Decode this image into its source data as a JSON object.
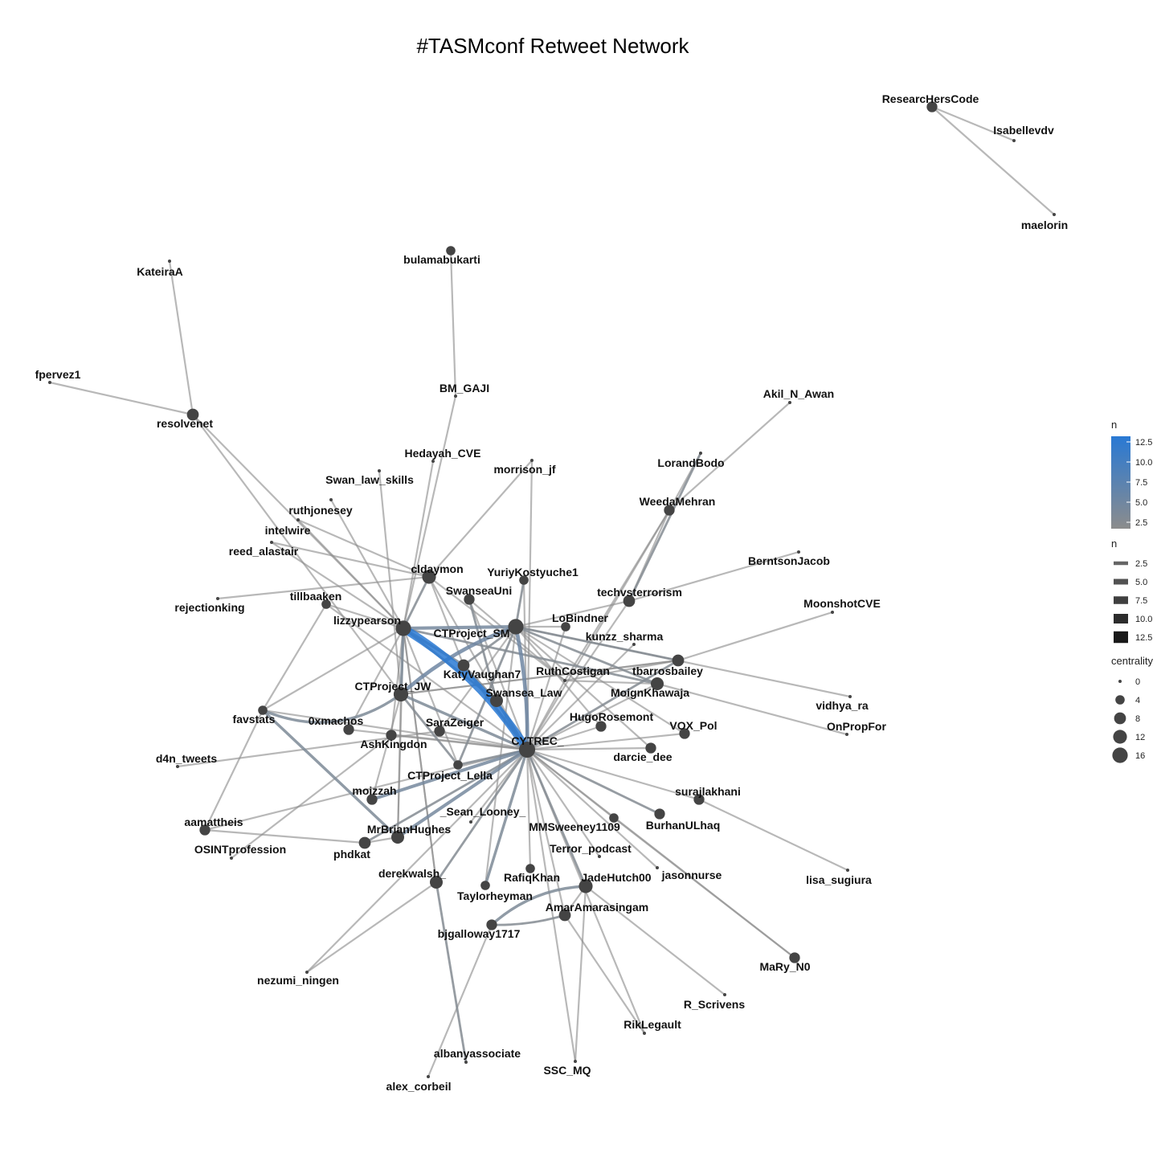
{
  "title": "#TASMconf Retweet Network",
  "colors": {
    "edge_low": "#8c8c8c",
    "edge_high": "#2979d4",
    "node": "#444444",
    "label": "#111111"
  },
  "nodes": [
    {
      "id": "ResearcHersCode",
      "centrality": 6
    },
    {
      "id": "Isabellevdv",
      "centrality": 0
    },
    {
      "id": "maelorin",
      "centrality": 0
    },
    {
      "id": "KateiraA",
      "centrality": 0
    },
    {
      "id": "fpervez1",
      "centrality": 0
    },
    {
      "id": "resolvenet",
      "centrality": 8
    },
    {
      "id": "bulamabukarti",
      "centrality": 4
    },
    {
      "id": "BM_GAJI",
      "centrality": 0
    },
    {
      "id": "Hedayah_CVE",
      "centrality": 0
    },
    {
      "id": "morrison_jf",
      "centrality": 0
    },
    {
      "id": "Swan_law_skills",
      "centrality": 0
    },
    {
      "id": "ruthjonesey",
      "centrality": 0
    },
    {
      "id": "intelwire",
      "centrality": 0
    },
    {
      "id": "reed_alastair",
      "centrality": 0
    },
    {
      "id": "rejectionking",
      "centrality": 0
    },
    {
      "id": "cldaymon",
      "centrality": 12
    },
    {
      "id": "YuriyKostyuche1",
      "centrality": 4
    },
    {
      "id": "SwanseaUni",
      "centrality": 6
    },
    {
      "id": "tillbaaken",
      "centrality": 4
    },
    {
      "id": "lizzypearson",
      "centrality": 16
    },
    {
      "id": "CTProject_SM",
      "centrality": 16
    },
    {
      "id": "LoBindner",
      "centrality": 4
    },
    {
      "id": "kunzz_sharma",
      "centrality": 0
    },
    {
      "id": "KatyVaughan7",
      "centrality": 8
    },
    {
      "id": "RuthCostigan",
      "centrality": 0
    },
    {
      "id": "tbarrosbailey",
      "centrality": 8
    },
    {
      "id": "CTProject_JW",
      "centrality": 14
    },
    {
      "id": "Swansea_Law",
      "centrality": 10
    },
    {
      "id": "MoignKhawaja",
      "centrality": 10
    },
    {
      "id": "favstats",
      "centrality": 4
    },
    {
      "id": "0xmachos",
      "centrality": 6
    },
    {
      "id": "SaraZeiger",
      "centrality": 6
    },
    {
      "id": "HugoRosemont",
      "centrality": 6
    },
    {
      "id": "VOX_Pol",
      "centrality": 6
    },
    {
      "id": "d4n_tweets",
      "centrality": 0
    },
    {
      "id": "AshKingdon",
      "centrality": 6
    },
    {
      "id": "CYTREC_",
      "centrality": 18
    },
    {
      "id": "darcie_dee",
      "centrality": 6
    },
    {
      "id": "CTProject_Lella",
      "centrality": 4
    },
    {
      "id": "surajlakhani",
      "centrality": 6
    },
    {
      "id": "moizzah",
      "centrality": 6
    },
    {
      "id": "aamattheis",
      "centrality": 6
    },
    {
      "id": "_Sean_Looney_",
      "centrality": 0
    },
    {
      "id": "BurhanULhaq",
      "centrality": 6
    },
    {
      "id": "MrBrianHughes",
      "centrality": 10
    },
    {
      "id": "MMSweeney1109",
      "centrality": 4
    },
    {
      "id": "OSINTprofession",
      "centrality": 0
    },
    {
      "id": "phdkat",
      "centrality": 8
    },
    {
      "id": "Terror_podcast",
      "centrality": 0
    },
    {
      "id": "jasonnurse",
      "centrality": 0
    },
    {
      "id": "lisa_sugiura",
      "centrality": 0
    },
    {
      "id": "derekwalsh_",
      "centrality": 10
    },
    {
      "id": "RafiqKhan",
      "centrality": 4
    },
    {
      "id": "JadeHutch00",
      "centrality": 12
    },
    {
      "id": "Taylorheyman",
      "centrality": 4
    },
    {
      "id": "AmarAmarasingam",
      "centrality": 8
    },
    {
      "id": "bjgalloway1717",
      "centrality": 6
    },
    {
      "id": "MaRy_N0",
      "centrality": 6
    },
    {
      "id": "nezumi_ningen",
      "centrality": 0
    },
    {
      "id": "R_Scrivens",
      "centrality": 0
    },
    {
      "id": "RikLegault",
      "centrality": 0
    },
    {
      "id": "albanyassociate",
      "centrality": 0
    },
    {
      "id": "SSC_MQ",
      "centrality": 0
    },
    {
      "id": "alex_corbeil",
      "centrality": 0
    },
    {
      "id": "techvsterrorism",
      "centrality": 8
    },
    {
      "id": "WeedaMehran",
      "centrality": 6
    },
    {
      "id": "LorandBodo",
      "centrality": 0
    },
    {
      "id": "Akil_N_Awan",
      "centrality": 0
    },
    {
      "id": "BerntsonJacob",
      "centrality": 0
    },
    {
      "id": "MoonshotCVE",
      "centrality": 0
    },
    {
      "id": "vidhya_ra",
      "centrality": 0
    },
    {
      "id": "OnPropFor",
      "centrality": 0
    }
  ],
  "edges": [
    {
      "from": "Isabellevdv",
      "to": "ResearcHersCode",
      "n": 1
    },
    {
      "from": "maelorin",
      "to": "ResearcHersCode",
      "n": 1
    },
    {
      "from": "KateiraA",
      "to": "resolvenet",
      "n": 1
    },
    {
      "from": "fpervez1",
      "to": "resolvenet",
      "n": 1
    },
    {
      "from": "resolvenet",
      "to": "lizzypearson",
      "n": 1
    },
    {
      "from": "resolvenet",
      "to": "CTProject_JW",
      "n": 1
    },
    {
      "from": "bulamabukarti",
      "to": "BM_GAJI",
      "n": 1
    },
    {
      "from": "BM_GAJI",
      "to": "lizzypearson",
      "n": 1
    },
    {
      "from": "Hedayah_CVE",
      "to": "lizzypearson",
      "n": 1
    },
    {
      "from": "morrison_jf",
      "to": "cldaymon",
      "n": 1
    },
    {
      "from": "morrison_jf",
      "to": "CYTREC_",
      "n": 1
    },
    {
      "from": "Swan_law_skills",
      "to": "CTProject_JW",
      "n": 1
    },
    {
      "from": "ruthjonesey",
      "to": "lizzypearson",
      "n": 1
    },
    {
      "from": "intelwire",
      "to": "lizzypearson",
      "n": 1
    },
    {
      "from": "intelwire",
      "to": "cldaymon",
      "n": 1
    },
    {
      "from": "reed_alastair",
      "to": "cldaymon",
      "n": 1
    },
    {
      "from": "reed_alastair",
      "to": "lizzypearson",
      "n": 1
    },
    {
      "from": "rejectionking",
      "to": "cldaymon",
      "n": 1
    },
    {
      "from": "tillbaaken",
      "to": "lizzypearson",
      "n": 1
    },
    {
      "from": "tillbaaken",
      "to": "CYTREC_",
      "n": 1
    },
    {
      "from": "tillbaaken",
      "to": "favstats",
      "n": 1
    },
    {
      "from": "lizzypearson",
      "to": "CYTREC_",
      "n": 14
    },
    {
      "from": "lizzypearson",
      "to": "CTProject_SM",
      "n": 4
    },
    {
      "from": "lizzypearson",
      "to": "KatyVaughan7",
      "n": 3
    },
    {
      "from": "lizzypearson",
      "to": "CTProject_JW",
      "n": 3
    },
    {
      "from": "lizzypearson",
      "to": "Swansea_Law",
      "n": 2
    },
    {
      "from": "lizzypearson",
      "to": "cldaymon",
      "n": 2
    },
    {
      "from": "lizzypearson",
      "to": "favstats",
      "n": 1
    },
    {
      "from": "lizzypearson",
      "to": "AshKingdon",
      "n": 1
    },
    {
      "from": "lizzypearson",
      "to": "MoignKhawaja",
      "n": 2
    },
    {
      "from": "CTProject_SM",
      "to": "CYTREC_",
      "n": 5
    },
    {
      "from": "CTProject_SM",
      "to": "CTProject_JW",
      "n": 5
    },
    {
      "from": "CTProject_SM",
      "to": "KatyVaughan7",
      "n": 2
    },
    {
      "from": "CTProject_SM",
      "to": "tbarrosbailey",
      "n": 2
    },
    {
      "from": "CTProject_SM",
      "to": "MoignKhawaja",
      "n": 2
    },
    {
      "from": "CTProject_SM",
      "to": "vidhya_ra",
      "n": 1
    },
    {
      "from": "CTProject_SM",
      "to": "CTProject_Lella",
      "n": 2
    },
    {
      "from": "cldaymon",
      "to": "CYTREC_",
      "n": 1
    },
    {
      "from": "cldaymon",
      "to": "RuthCostigan",
      "n": 1
    },
    {
      "from": "cldaymon",
      "to": "KatyVaughan7",
      "n": 1
    },
    {
      "from": "YuriyKostyuche1",
      "to": "CTProject_SM",
      "n": 2
    },
    {
      "from": "YuriyKostyuche1",
      "to": "CYTREC_",
      "n": 1
    },
    {
      "from": "SwanseaUni",
      "to": "Swansea_Law",
      "n": 2
    },
    {
      "from": "SwanseaUni",
      "to": "CYTREC_",
      "n": 1
    },
    {
      "from": "SwanseaUni",
      "to": "RuthCostigan",
      "n": 1
    },
    {
      "from": "LoBindner",
      "to": "CYTREC_",
      "n": 1
    },
    {
      "from": "LoBindner",
      "to": "CTProject_SM",
      "n": 1
    },
    {
      "from": "kunzz_sharma",
      "to": "CYTREC_",
      "n": 1
    },
    {
      "from": "KatyVaughan7",
      "to": "CYTREC_",
      "n": 3
    },
    {
      "from": "KatyVaughan7",
      "to": "Swansea_Law",
      "n": 2
    },
    {
      "from": "RuthCostigan",
      "to": "CYTREC_",
      "n": 1
    },
    {
      "from": "RuthCostigan",
      "to": "tbarrosbailey",
      "n": 1
    },
    {
      "from": "RuthCostigan",
      "to": "MoignKhawaja",
      "n": 1
    },
    {
      "from": "tbarrosbailey",
      "to": "CYTREC_",
      "n": 2
    },
    {
      "from": "tbarrosbailey",
      "to": "MoonshotCVE",
      "n": 1
    },
    {
      "from": "tbarrosbailey",
      "to": "CTProject_JW",
      "n": 1
    },
    {
      "from": "CTProject_JW",
      "to": "CYTREC_",
      "n": 3
    },
    {
      "from": "CTProject_JW",
      "to": "favstats",
      "n": 3
    },
    {
      "from": "CTProject_JW",
      "to": "CTProject_Lella",
      "n": 2
    },
    {
      "from": "CTProject_JW",
      "to": "tbarrosbailey",
      "n": 1
    },
    {
      "from": "Swansea_Law",
      "to": "CYTREC_",
      "n": 3
    },
    {
      "from": "MoignKhawaja",
      "to": "CYTREC_",
      "n": 1
    },
    {
      "from": "MoignKhawaja",
      "to": "OnPropFor",
      "n": 1
    },
    {
      "from": "favstats",
      "to": "CYTREC_",
      "n": 1
    },
    {
      "from": "favstats",
      "to": "MrBrianHughes",
      "n": 3
    },
    {
      "from": "favstats",
      "to": "aamattheis",
      "n": 1
    },
    {
      "from": "0xmachos",
      "to": "CYTREC_",
      "n": 1
    },
    {
      "from": "d4n_tweets",
      "to": "SaraZeiger",
      "n": 1
    },
    {
      "from": "SaraZeiger",
      "to": "CYTREC_",
      "n": 1
    },
    {
      "from": "SaraZeiger",
      "to": "CTProject_SM",
      "n": 1
    },
    {
      "from": "HugoRosemont",
      "to": "CYTREC_",
      "n": 1
    },
    {
      "from": "VOX_Pol",
      "to": "CYTREC_",
      "n": 1
    },
    {
      "from": "VOX_Pol",
      "to": "CTProject_SM",
      "n": 1
    },
    {
      "from": "AshKingdon",
      "to": "CYTREC_",
      "n": 1
    },
    {
      "from": "AshKingdon",
      "to": "OSINTprofession",
      "n": 1
    },
    {
      "from": "CYTREC_",
      "to": "darcie_dee",
      "n": 1
    },
    {
      "from": "CYTREC_",
      "to": "CTProject_Lella",
      "n": 2
    },
    {
      "from": "CYTREC_",
      "to": "surajlakhani",
      "n": 1
    },
    {
      "from": "CYTREC_",
      "to": "moizzah",
      "n": 4
    },
    {
      "from": "CYTREC_",
      "to": "_Sean_Looney_",
      "n": 1
    },
    {
      "from": "CYTREC_",
      "to": "BurhanULhaq",
      "n": 2
    },
    {
      "from": "CYTREC_",
      "to": "MrBrianHughes",
      "n": 4
    },
    {
      "from": "CYTREC_",
      "to": "MMSweeney1109",
      "n": 1
    },
    {
      "from": "CYTREC_",
      "to": "phdkat",
      "n": 2
    },
    {
      "from": "CYTREC_",
      "to": "Terror_podcast",
      "n": 1
    },
    {
      "from": "CYTREC_",
      "to": "jasonnurse",
      "n": 1
    },
    {
      "from": "CYTREC_",
      "to": "derekwalsh_",
      "n": 2
    },
    {
      "from": "CYTREC_",
      "to": "RafiqKhan",
      "n": 1
    },
    {
      "from": "CYTREC_",
      "to": "JadeHutch00",
      "n": 2
    },
    {
      "from": "CYTREC_",
      "to": "Taylorheyman",
      "n": 3
    },
    {
      "from": "CYTREC_",
      "to": "AmarAmarasingam",
      "n": 1
    },
    {
      "from": "CYTREC_",
      "to": "MaRy_N0",
      "n": 1
    },
    {
      "from": "CYTREC_",
      "to": "RikLegault",
      "n": 1
    },
    {
      "from": "CYTREC_",
      "to": "SSC_MQ",
      "n": 1
    },
    {
      "from": "CYTREC_",
      "to": "nezumi_ningen",
      "n": 1
    },
    {
      "from": "CYTREC_",
      "to": "techvsterrorism",
      "n": 1
    },
    {
      "from": "CYTREC_",
      "to": "WeedaMehran",
      "n": 1
    },
    {
      "from": "CYTREC_",
      "to": "aamattheis",
      "n": 1
    },
    {
      "from": "surajlakhani",
      "to": "lisa_sugiura",
      "n": 1
    },
    {
      "from": "MMSweeney1109",
      "to": "MaRy_N0",
      "n": 1
    },
    {
      "from": "JadeHutch00",
      "to": "bjgalloway1717",
      "n": 3
    },
    {
      "from": "JadeHutch00",
      "to": "AmarAmarasingam",
      "n": 1
    },
    {
      "from": "JadeHutch00",
      "to": "R_Scrivens",
      "n": 1
    },
    {
      "from": "JadeHutch00",
      "to": "SSC_MQ",
      "n": 1
    },
    {
      "from": "AmarAmarasingam",
      "to": "bjgalloway1717",
      "n": 2
    },
    {
      "from": "AmarAmarasingam",
      "to": "RikLegault",
      "n": 1
    },
    {
      "from": "bjgalloway1717",
      "to": "alex_corbeil",
      "n": 1
    },
    {
      "from": "derekwalsh_",
      "to": "albanyassociate",
      "n": 2
    },
    {
      "from": "derekwalsh_",
      "to": "nezumi_ningen",
      "n": 1
    },
    {
      "from": "derekwalsh_",
      "to": "lizzypearson",
      "n": 1
    },
    {
      "from": "MrBrianHughes",
      "to": "phdkat",
      "n": 1
    },
    {
      "from": "MrBrianHughes",
      "to": "CTProject_JW",
      "n": 1
    },
    {
      "from": "MrBrianHughes",
      "to": "lizzypearson",
      "n": 1
    },
    {
      "from": "phdkat",
      "to": "aamattheis",
      "n": 1
    },
    {
      "from": "techvsterrorism",
      "to": "WeedaMehran",
      "n": 1
    },
    {
      "from": "techvsterrorism",
      "to": "LorandBodo",
      "n": 2
    },
    {
      "from": "techvsterrorism",
      "to": "BerntsonJacob",
      "n": 1
    },
    {
      "from": "techvsterrorism",
      "to": "CTProject_SM",
      "n": 1
    },
    {
      "from": "WeedaMehran",
      "to": "Akil_N_Awan",
      "n": 1
    },
    {
      "from": "WeedaMehran",
      "to": "LorandBodo",
      "n": 1
    },
    {
      "from": "WeedaMehran",
      "to": "RuthCostigan",
      "n": 1
    },
    {
      "from": "CTProject_Lella",
      "to": "lizzypearson",
      "n": 1
    },
    {
      "from": "moizzah",
      "to": "CTProject_JW",
      "n": 1
    },
    {
      "from": "0xmachos",
      "to": "lizzypearson",
      "n": 1
    },
    {
      "from": "CTProject_SM",
      "to": "darcie_dee",
      "n": 1
    },
    {
      "from": "CTProject_SM",
      "to": "HugoRosemont",
      "n": 1
    },
    {
      "from": "CTProject_SM",
      "to": "Taylorheyman",
      "n": 1
    },
    {
      "from": "lizzypearson",
      "to": "derekwalsh_",
      "n": 1
    }
  ],
  "legend": {
    "color_title": "n",
    "color_ticks": [
      "12.5",
      "10.0",
      "7.5",
      "5.0",
      "2.5"
    ],
    "width_title": "n",
    "width_items": [
      {
        "label": "2.5",
        "n": 2.5
      },
      {
        "label": "5.0",
        "n": 5
      },
      {
        "label": "7.5",
        "n": 7.5
      },
      {
        "label": "10.0",
        "n": 10
      },
      {
        "label": "12.5",
        "n": 12.5
      }
    ],
    "size_title": "centrality",
    "size_items": [
      {
        "label": "0",
        "c": 0
      },
      {
        "label": "4",
        "c": 4
      },
      {
        "label": "8",
        "c": 8
      },
      {
        "label": "12",
        "c": 12
      },
      {
        "label": "16",
        "c": 16
      }
    ]
  }
}
